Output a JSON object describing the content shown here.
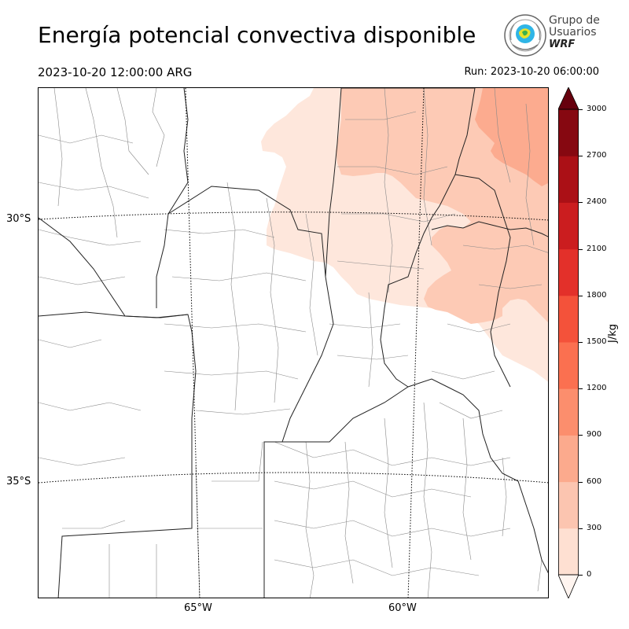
{
  "header": {
    "title": "Energía potencial convectiva disponible",
    "valid_time": "2023-10-20 12:00:00 ARG",
    "run_time": "Run: 2023-10-20 06:00:00"
  },
  "logo": {
    "line1": "Grupo de",
    "line2": "Usuarios",
    "line3": "WRF"
  },
  "map": {
    "latitude_labels": [
      "30°S",
      "35°S"
    ],
    "longitude_labels": [
      "65°W",
      "60°W"
    ],
    "field_colors": [
      "#fee7dc",
      "#fdcab5",
      "#fcab8f"
    ]
  },
  "colorbar": {
    "label": "J/kg",
    "ticks": [
      "0",
      "300",
      "600",
      "900",
      "1200",
      "1500",
      "1800",
      "2100",
      "2400",
      "2700",
      "3000"
    ],
    "colors": [
      "#fff0e8",
      "#fee0d2",
      "#fcc5b0",
      "#fcaa8d",
      "#fc8e6d",
      "#fb7050",
      "#f4523a",
      "#e3302a",
      "#cb1d1f",
      "#ab1016",
      "#860811"
    ],
    "extend_color_top": "#67000d",
    "extend_color_bottom": "#fff5f0"
  }
}
